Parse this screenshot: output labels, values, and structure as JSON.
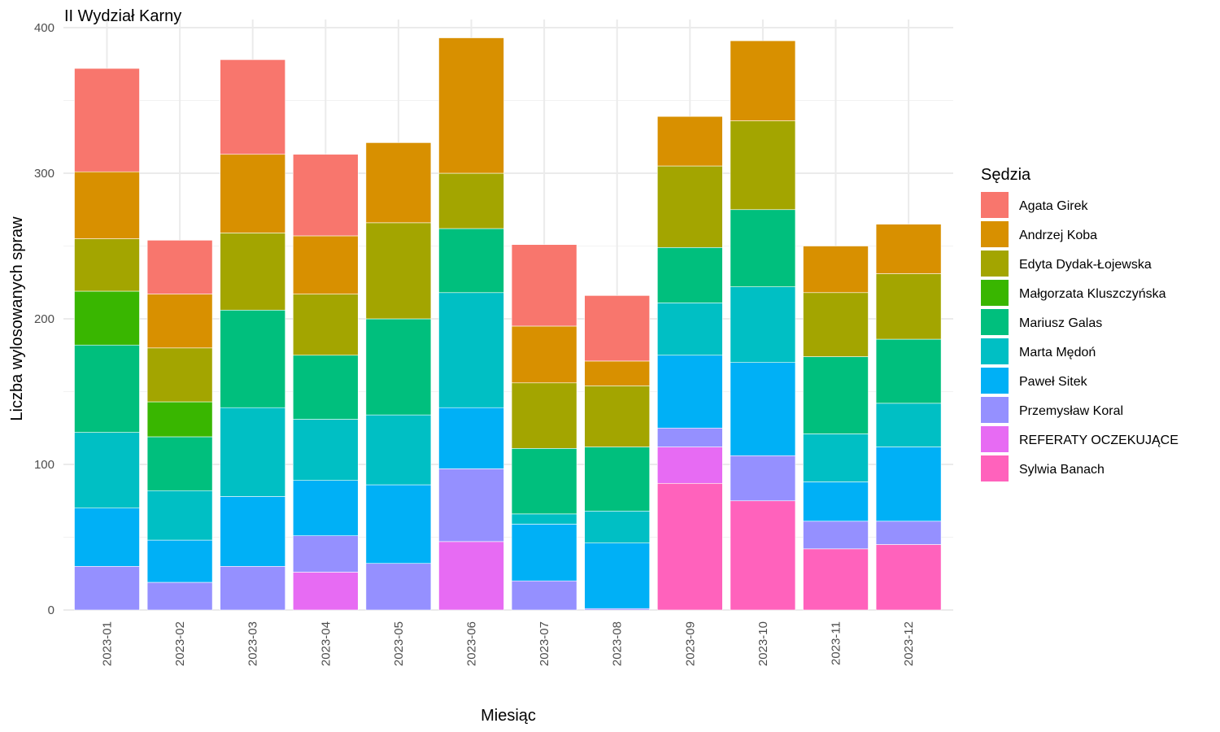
{
  "chart_data": {
    "type": "bar",
    "stacked": true,
    "title": "II Wydział Karny",
    "xlabel": "Miesiąc",
    "ylabel": "Liczba wylosowanych spraw",
    "ylim": [
      0,
      400
    ],
    "yticks": [
      "0",
      "100",
      "200",
      "300",
      "400"
    ],
    "grid": true,
    "legend": {
      "title": "Sędzia",
      "position": "right"
    },
    "categories": [
      "2023-01",
      "2023-02",
      "2023-03",
      "2023-04",
      "2023-05",
      "2023-06",
      "2023-07",
      "2023-08",
      "2023-09",
      "2023-10",
      "2023-11",
      "2023-12"
    ],
    "series": [
      {
        "name": "Agata Girek",
        "color": "#F8766D",
        "values": [
          71,
          37,
          65,
          56,
          0,
          0,
          56,
          45,
          0,
          0,
          0,
          0
        ]
      },
      {
        "name": "Andrzej Koba",
        "color": "#D89000",
        "values": [
          46,
          37,
          54,
          40,
          55,
          93,
          39,
          17,
          34,
          55,
          32,
          34
        ]
      },
      {
        "name": "Edyta Dydak-Łojewska",
        "color": "#A3A500",
        "values": [
          36,
          37,
          53,
          42,
          66,
          38,
          45,
          42,
          56,
          61,
          44,
          45
        ]
      },
      {
        "name": "Małgorzata Kluszczyńska",
        "color": "#39B600",
        "values": [
          37,
          24,
          0,
          0,
          0,
          0,
          0,
          0,
          0,
          0,
          0,
          0
        ]
      },
      {
        "name": "Mariusz Galas",
        "color": "#00BF7D",
        "values": [
          60,
          37,
          67,
          44,
          66,
          44,
          45,
          44,
          38,
          53,
          53,
          44
        ]
      },
      {
        "name": "Marta Mędoń",
        "color": "#00BFC4",
        "values": [
          52,
          34,
          61,
          42,
          48,
          79,
          7,
          22,
          36,
          52,
          33,
          30
        ]
      },
      {
        "name": "Paweł Sitek",
        "color": "#00B0F6",
        "values": [
          40,
          29,
          48,
          38,
          54,
          42,
          39,
          45,
          50,
          64,
          27,
          51
        ]
      },
      {
        "name": "Przemysław Koral",
        "color": "#9590FF",
        "values": [
          30,
          19,
          30,
          25,
          32,
          50,
          20,
          1,
          13,
          31,
          19,
          16
        ]
      },
      {
        "name": "REFERATY OCZEKUJĄCE",
        "color": "#E76BF3",
        "values": [
          0,
          0,
          0,
          26,
          0,
          47,
          0,
          0,
          25,
          0,
          0,
          0
        ]
      },
      {
        "name": "Sylwia Banach",
        "color": "#FF62BC",
        "values": [
          0,
          0,
          0,
          0,
          0,
          0,
          0,
          0,
          87,
          75,
          42,
          45
        ]
      }
    ]
  }
}
